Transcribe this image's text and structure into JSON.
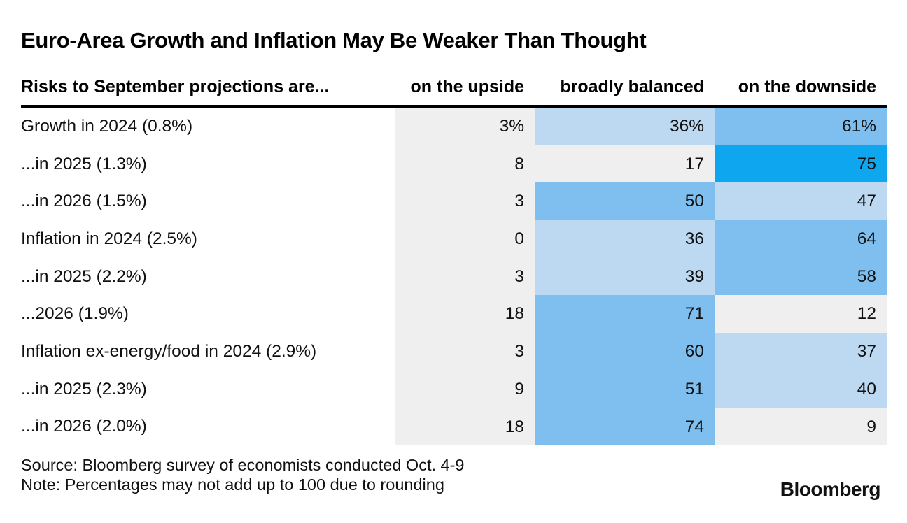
{
  "title": "Euro-Area Growth and Inflation May Be Weaker Than Thought",
  "table": {
    "row_header_label": "Risks to September projections are...",
    "columns": [
      "on the upside",
      "broadly balanced",
      "on the downside"
    ],
    "rows": [
      {
        "label": "Growth in 2024 (0.8%)",
        "values": [
          "3%",
          "36%",
          "61%"
        ],
        "levels": [
          "none",
          "light",
          "mid"
        ]
      },
      {
        "label": "...in 2025 (1.3%)",
        "values": [
          "8",
          "17",
          "75"
        ],
        "levels": [
          "none",
          "none",
          "high"
        ]
      },
      {
        "label": "...in 2026 (1.5%)",
        "values": [
          "3",
          "50",
          "47"
        ],
        "levels": [
          "none",
          "mid",
          "light"
        ]
      },
      {
        "label": "Inflation in 2024 (2.5%)",
        "values": [
          "0",
          "36",
          "64"
        ],
        "levels": [
          "none",
          "light",
          "mid"
        ]
      },
      {
        "label": "...in 2025 (2.2%)",
        "values": [
          "3",
          "39",
          "58"
        ],
        "levels": [
          "none",
          "light",
          "mid"
        ]
      },
      {
        "label": "...2026 (1.9%)",
        "values": [
          "18",
          "71",
          "12"
        ],
        "levels": [
          "none",
          "mid",
          "none"
        ]
      },
      {
        "label": "Inflation ex-energy/food in 2024 (2.9%)",
        "values": [
          "3",
          "60",
          "37"
        ],
        "levels": [
          "none",
          "mid",
          "light"
        ]
      },
      {
        "label": "...in 2025 (2.3%)",
        "values": [
          "9",
          "51",
          "40"
        ],
        "levels": [
          "none",
          "mid",
          "light"
        ]
      },
      {
        "label": "...in 2026 (2.0%)",
        "values": [
          "18",
          "74",
          "9"
        ],
        "levels": [
          "none",
          "mid",
          "none"
        ]
      }
    ]
  },
  "colors": {
    "none": "#efefef",
    "light": "#bdd9f1",
    "mid": "#7fbfef",
    "high": "#0ea6ef"
  },
  "footer": {
    "source": "Source: Bloomberg survey of economists conducted Oct. 4-9",
    "note": "Note: Percentages may not add up to 100 due to rounding",
    "logo": "Bloomberg"
  },
  "chart_data": {
    "type": "heatmap",
    "title": "Euro-Area Growth and Inflation May Be Weaker Than Thought",
    "subtitle": "Risks to September projections are...",
    "columns": [
      "on the upside",
      "broadly balanced",
      "on the downside"
    ],
    "rows": [
      "Growth in 2024 (0.8%)",
      "...in 2025 (1.3%)",
      "...in 2026 (1.5%)",
      "Inflation in 2024 (2.5%)",
      "...in 2025 (2.2%)",
      "...2026 (1.9%)",
      "Inflation ex-energy/food in 2024 (2.9%)",
      "...in 2025 (2.3%)",
      "...in 2026 (2.0%)"
    ],
    "values": [
      [
        3,
        36,
        61
      ],
      [
        8,
        17,
        75
      ],
      [
        3,
        50,
        47
      ],
      [
        0,
        36,
        64
      ],
      [
        3,
        39,
        58
      ],
      [
        18,
        71,
        12
      ],
      [
        3,
        60,
        37
      ],
      [
        9,
        51,
        40
      ],
      [
        18,
        74,
        9
      ]
    ],
    "unit": "%",
    "color_scale_bins": [
      {
        "range": [
          0,
          24
        ],
        "color": "#efefef"
      },
      {
        "range": [
          25,
          49
        ],
        "color": "#bdd9f1"
      },
      {
        "range": [
          50,
          74
        ],
        "color": "#7fbfef"
      },
      {
        "range": [
          75,
          100
        ],
        "color": "#0ea6ef"
      }
    ],
    "source": "Bloomberg survey of economists conducted Oct. 4-9",
    "note": "Percentages may not add up to 100 due to rounding"
  }
}
